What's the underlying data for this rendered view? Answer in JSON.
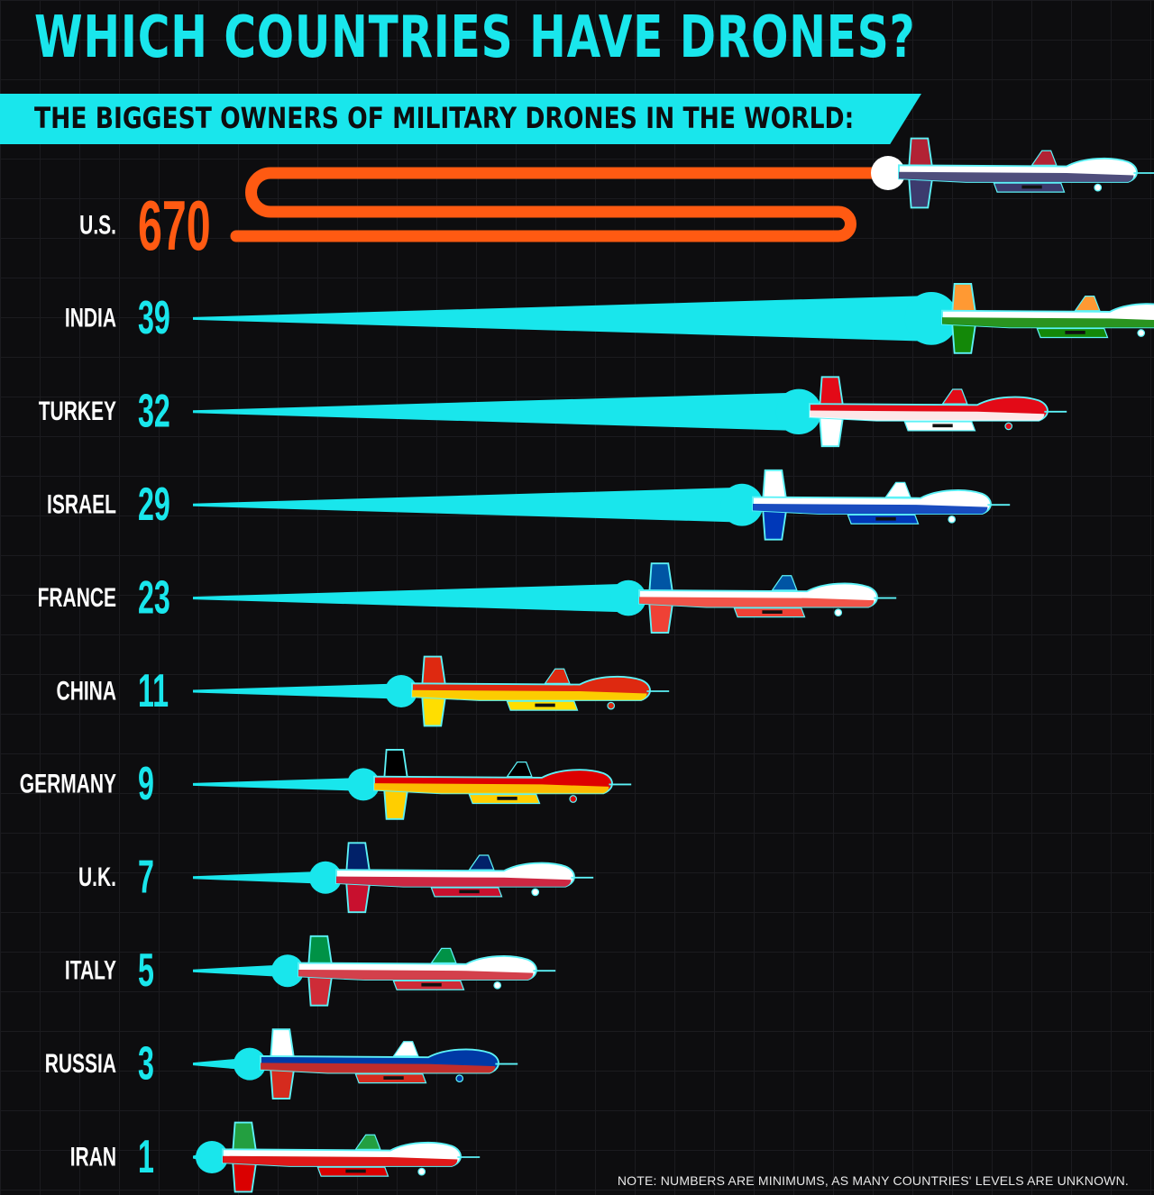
{
  "title": "WHICH COUNTRIES HAVE DRONES?",
  "subtitle": "THE BIGGEST OWNERS OF MILITARY DRONES IN THE WORLD:",
  "note": "NOTE: NUMBERS ARE MINIMUMS, AS MANY COUNTRIES' LEVELS ARE UNKNOWN.",
  "colors": {
    "background": "#0d0d0f",
    "accent": "#19e6ec",
    "highlight": "#ff5a12",
    "label": "#ffffff"
  },
  "chart_data": {
    "type": "bar",
    "title": "WHICH COUNTRIES HAVE DRONES?",
    "subtitle": "THE BIGGEST OWNERS OF MILITARY DRONES IN THE WORLD:",
    "orientation": "horizontal",
    "categories": [
      "U.S.",
      "INDIA",
      "TURKEY",
      "ISRAEL",
      "FRANCE",
      "CHINA",
      "GERMANY",
      "U.K.",
      "ITALY",
      "RUSSIA",
      "IRAN"
    ],
    "values": [
      670,
      39,
      32,
      29,
      23,
      11,
      9,
      7,
      5,
      3,
      1
    ],
    "value_labels": [
      "670",
      "39",
      "32",
      "29",
      "23",
      "11",
      "9",
      "7",
      "5",
      "3",
      "1"
    ],
    "highlighted_category": "U.S.",
    "grid": true,
    "legend": "none"
  },
  "drones": [
    {
      "country": "U.S.",
      "flag": "united-states-flag",
      "colors": [
        "#b22234",
        "#ffffff",
        "#3c3b6e"
      ]
    },
    {
      "country": "INDIA",
      "flag": "india-flag",
      "colors": [
        "#ff9933",
        "#ffffff",
        "#138808"
      ]
    },
    {
      "country": "TURKEY",
      "flag": "turkey-flag",
      "colors": [
        "#e30a17",
        "#e30a17",
        "#ffffff"
      ]
    },
    {
      "country": "ISRAEL",
      "flag": "israel-flag",
      "colors": [
        "#ffffff",
        "#ffffff",
        "#0038b8"
      ]
    },
    {
      "country": "FRANCE",
      "flag": "france-flag",
      "colors": [
        "#0055a4",
        "#ffffff",
        "#ef4135"
      ]
    },
    {
      "country": "CHINA",
      "flag": "china-flag",
      "colors": [
        "#de2910",
        "#de2910",
        "#ffde00"
      ]
    },
    {
      "country": "GERMANY",
      "flag": "germany-flag",
      "colors": [
        "#000000",
        "#dd0000",
        "#ffce00"
      ]
    },
    {
      "country": "U.K.",
      "flag": "united-kingdom-flag",
      "colors": [
        "#012169",
        "#ffffff",
        "#c8102e"
      ]
    },
    {
      "country": "ITALY",
      "flag": "italy-flag",
      "colors": [
        "#009246",
        "#ffffff",
        "#ce2b37"
      ]
    },
    {
      "country": "RUSSIA",
      "flag": "russia-flag",
      "colors": [
        "#ffffff",
        "#0039a6",
        "#d52b1e"
      ]
    },
    {
      "country": "IRAN",
      "flag": "iran-flag",
      "colors": [
        "#239f40",
        "#ffffff",
        "#da0000"
      ]
    }
  ]
}
